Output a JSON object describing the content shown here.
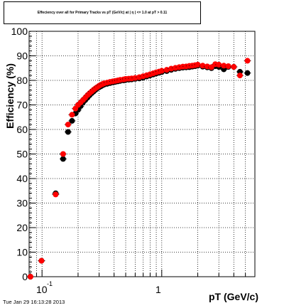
{
  "chart_data": {
    "type": "scatter",
    "title": "Effeciency over all for Primary Tracks vs pT (GeV/c) at | η | <= 1.0 at pT > 0.11",
    "xlabel": "pT (GeV/c)",
    "ylabel": "Efficiency (%)",
    "xscale": "log",
    "xlim": [
      0.078,
      6.0
    ],
    "ylim": [
      0,
      100
    ],
    "grid": true,
    "x_tick_labels": [
      "10",
      "-1",
      "1"
    ],
    "y_ticks": [
      0,
      10,
      20,
      30,
      40,
      50,
      60,
      70,
      80,
      90,
      100
    ],
    "series": [
      {
        "color": "#000000",
        "points": [
          [
            0.08,
            0.0
          ],
          [
            0.099,
            6.5
          ],
          [
            0.13,
            34.0
          ],
          [
            0.15,
            48.0
          ],
          [
            0.165,
            59.0
          ],
          [
            0.178,
            63.5
          ],
          [
            0.19,
            66.5
          ],
          [
            0.2,
            68.0
          ],
          [
            0.21,
            69.5
          ],
          [
            0.22,
            71.0
          ],
          [
            0.23,
            72.0
          ],
          [
            0.24,
            73.0
          ],
          [
            0.25,
            74.0
          ],
          [
            0.26,
            74.8
          ],
          [
            0.27,
            75.5
          ],
          [
            0.28,
            76.2
          ],
          [
            0.29,
            76.8
          ],
          [
            0.3,
            77.2
          ],
          [
            0.31,
            77.6
          ],
          [
            0.32,
            78.0
          ],
          [
            0.33,
            78.3
          ],
          [
            0.35,
            78.6
          ],
          [
            0.37,
            78.9
          ],
          [
            0.39,
            79.2
          ],
          [
            0.41,
            79.4
          ],
          [
            0.43,
            79.6
          ],
          [
            0.45,
            79.8
          ],
          [
            0.48,
            80.0
          ],
          [
            0.5,
            80.2
          ],
          [
            0.53,
            80.3
          ],
          [
            0.56,
            80.4
          ],
          [
            0.6,
            80.6
          ],
          [
            0.65,
            80.8
          ],
          [
            0.7,
            81.2
          ],
          [
            0.75,
            81.6
          ],
          [
            0.8,
            82.0
          ],
          [
            0.85,
            82.4
          ],
          [
            0.9,
            82.8
          ],
          [
            0.95,
            83.1
          ],
          [
            1.0,
            83.4
          ],
          [
            1.1,
            83.8
          ],
          [
            1.2,
            84.3
          ],
          [
            1.3,
            84.7
          ],
          [
            1.4,
            85.0
          ],
          [
            1.5,
            85.2
          ],
          [
            1.6,
            85.3
          ],
          [
            1.7,
            85.4
          ],
          [
            1.8,
            85.6
          ],
          [
            1.9,
            85.8
          ],
          [
            2.0,
            86.0
          ],
          [
            2.2,
            85.6
          ],
          [
            2.4,
            85.3
          ],
          [
            2.6,
            85.0
          ],
          [
            2.8,
            85.8
          ],
          [
            3.0,
            85.5
          ],
          [
            3.3,
            84.5
          ],
          [
            3.6,
            85.5
          ],
          [
            4.0,
            85.5
          ],
          [
            4.5,
            83.5
          ],
          [
            5.2,
            83.0
          ]
        ]
      },
      {
        "color": "#ff0000",
        "points": [
          [
            0.08,
            0.0
          ],
          [
            0.099,
            6.5
          ],
          [
            0.13,
            33.5
          ],
          [
            0.15,
            50.0
          ],
          [
            0.165,
            62.0
          ],
          [
            0.178,
            66.0
          ],
          [
            0.19,
            68.5
          ],
          [
            0.2,
            70.0
          ],
          [
            0.21,
            71.0
          ],
          [
            0.22,
            72.0
          ],
          [
            0.23,
            73.0
          ],
          [
            0.24,
            74.0
          ],
          [
            0.25,
            74.8
          ],
          [
            0.26,
            75.5
          ],
          [
            0.27,
            76.2
          ],
          [
            0.28,
            76.8
          ],
          [
            0.29,
            77.3
          ],
          [
            0.3,
            77.8
          ],
          [
            0.31,
            78.2
          ],
          [
            0.32,
            78.5
          ],
          [
            0.33,
            78.8
          ],
          [
            0.35,
            79.1
          ],
          [
            0.37,
            79.4
          ],
          [
            0.39,
            79.6
          ],
          [
            0.41,
            79.8
          ],
          [
            0.43,
            80.0
          ],
          [
            0.45,
            80.2
          ],
          [
            0.48,
            80.4
          ],
          [
            0.5,
            80.6
          ],
          [
            0.53,
            80.7
          ],
          [
            0.56,
            80.8
          ],
          [
            0.6,
            81.0
          ],
          [
            0.65,
            81.3
          ],
          [
            0.7,
            81.7
          ],
          [
            0.75,
            82.1
          ],
          [
            0.8,
            82.5
          ],
          [
            0.85,
            82.9
          ],
          [
            0.9,
            83.3
          ],
          [
            0.95,
            83.6
          ],
          [
            1.0,
            83.9
          ],
          [
            1.1,
            84.3
          ],
          [
            1.2,
            84.8
          ],
          [
            1.3,
            85.1
          ],
          [
            1.4,
            85.4
          ],
          [
            1.5,
            85.6
          ],
          [
            1.6,
            85.7
          ],
          [
            1.7,
            85.9
          ],
          [
            1.8,
            86.0
          ],
          [
            1.9,
            86.2
          ],
          [
            2.0,
            86.4
          ],
          [
            2.2,
            86.0
          ],
          [
            2.4,
            85.7
          ],
          [
            2.6,
            85.4
          ],
          [
            2.8,
            86.6
          ],
          [
            3.0,
            86.4
          ],
          [
            3.3,
            86.0
          ],
          [
            3.6,
            85.8
          ],
          [
            4.0,
            85.5
          ],
          [
            4.5,
            82.0
          ],
          [
            5.2,
            88.0
          ]
        ]
      }
    ]
  },
  "footer": {
    "timestamp": "Tue Jan 29 16:13:28 2013"
  }
}
